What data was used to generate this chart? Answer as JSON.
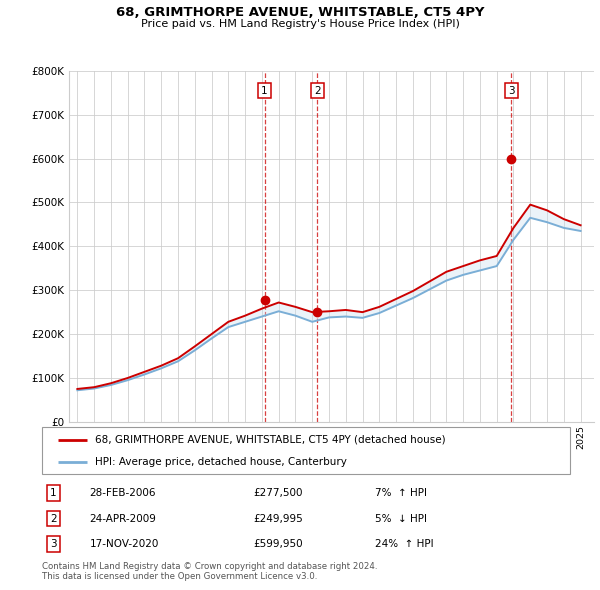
{
  "title": "68, GRIMTHORPE AVENUE, WHITSTABLE, CT5 4PY",
  "subtitle": "Price paid vs. HM Land Registry's House Price Index (HPI)",
  "ylim": [
    0,
    800000
  ],
  "yticks": [
    0,
    100000,
    200000,
    300000,
    400000,
    500000,
    600000,
    700000,
    800000
  ],
  "ytick_labels": [
    "£0",
    "£100K",
    "£200K",
    "£300K",
    "£400K",
    "£500K",
    "£600K",
    "£700K",
    "£800K"
  ],
  "xlim_start": 1994.5,
  "xlim_end": 2025.8,
  "sales": [
    {
      "date_str": "28-FEB-2006",
      "date_num": 2006.16,
      "price": 277500,
      "label": "1",
      "pct": "7%",
      "dir": "↑"
    },
    {
      "date_str": "24-APR-2009",
      "date_num": 2009.31,
      "price": 249995,
      "label": "2",
      "pct": "5%",
      "dir": "↓"
    },
    {
      "date_str": "17-NOV-2020",
      "date_num": 2020.88,
      "price": 599950,
      "label": "3",
      "pct": "24%",
      "dir": "↑"
    }
  ],
  "legend_line1": "68, GRIMTHORPE AVENUE, WHITSTABLE, CT5 4PY (detached house)",
  "legend_line2": "HPI: Average price, detached house, Canterbury",
  "footer1": "Contains HM Land Registry data © Crown copyright and database right 2024.",
  "footer2": "This data is licensed under the Open Government Licence v3.0.",
  "red_color": "#cc0000",
  "blue_color": "#7aaed6",
  "shade_color": "#c8ddf0",
  "hpi_years": [
    1995,
    1996,
    1997,
    1998,
    1999,
    2000,
    2001,
    2002,
    2003,
    2004,
    2005,
    2006,
    2007,
    2008,
    2009,
    2010,
    2011,
    2012,
    2013,
    2014,
    2015,
    2016,
    2017,
    2018,
    2019,
    2020,
    2021,
    2022,
    2023,
    2024,
    2025
  ],
  "hpi_values": [
    72000,
    76000,
    84000,
    95000,
    108000,
    122000,
    138000,
    163000,
    190000,
    216000,
    228000,
    240000,
    252000,
    242000,
    228000,
    238000,
    240000,
    237000,
    248000,
    265000,
    282000,
    302000,
    322000,
    335000,
    345000,
    355000,
    415000,
    465000,
    455000,
    442000,
    435000
  ],
  "price_years": [
    1995,
    1996,
    1997,
    1998,
    1999,
    2000,
    2001,
    2002,
    2003,
    2004,
    2005,
    2006,
    2007,
    2008,
    2009,
    2010,
    2011,
    2012,
    2013,
    2014,
    2015,
    2016,
    2017,
    2018,
    2019,
    2020,
    2021,
    2022,
    2023,
    2024,
    2025
  ],
  "price_values": [
    75000,
    79000,
    88000,
    100000,
    114000,
    128000,
    145000,
    172000,
    200000,
    228000,
    242000,
    258000,
    272000,
    262000,
    250000,
    252000,
    255000,
    250000,
    262000,
    280000,
    298000,
    320000,
    342000,
    355000,
    368000,
    378000,
    442000,
    495000,
    482000,
    462000,
    448000
  ]
}
